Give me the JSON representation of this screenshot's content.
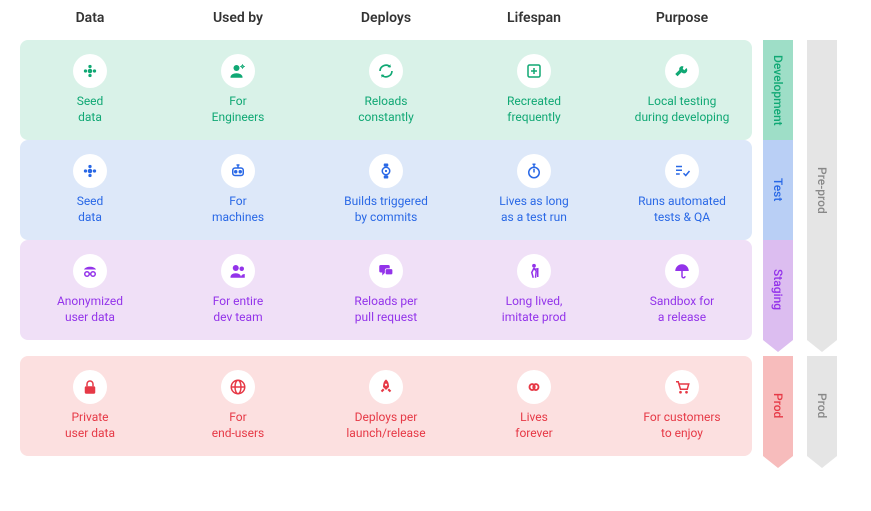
{
  "columns": [
    "Data",
    "Used by",
    "Deploys",
    "Lifespan",
    "Purpose"
  ],
  "environments": {
    "development": {
      "label": "Development",
      "bg_color": "#d9f2e8",
      "text_color": "#10a874",
      "tag_bg": "#9edec7",
      "cells": [
        {
          "icon": "flower",
          "text": "Seed\ndata"
        },
        {
          "icon": "engineer",
          "text": "For\nEngineers"
        },
        {
          "icon": "reload",
          "text": "Reloads\nconstantly"
        },
        {
          "icon": "plus-box",
          "text": "Recreated\nfrequently"
        },
        {
          "icon": "wrench",
          "text": "Local testing\nduring developing"
        }
      ]
    },
    "test": {
      "label": "Test",
      "bg_color": "#dde8f9",
      "text_color": "#2968e6",
      "tag_bg": "#b9cff5",
      "cells": [
        {
          "icon": "flower",
          "text": "Seed\ndata"
        },
        {
          "icon": "robot",
          "text": "For\nmachines"
        },
        {
          "icon": "watch",
          "text": "Builds triggered\nby commits"
        },
        {
          "icon": "stopwatch",
          "text": "Lives as long\nas a test run"
        },
        {
          "icon": "checklist",
          "text": "Runs automated\ntests & QA"
        }
      ]
    },
    "staging": {
      "label": "Staging",
      "bg_color": "#f0e0f7",
      "text_color": "#9333ea",
      "tag_bg": "#dcbdf0",
      "cells": [
        {
          "icon": "incognito",
          "text": "Anonymized\nuser data"
        },
        {
          "icon": "team",
          "text": "For entire\ndev team"
        },
        {
          "icon": "chat",
          "text": "Reloads per\npull request"
        },
        {
          "icon": "walker",
          "text": "Long lived,\nimitate prod"
        },
        {
          "icon": "umbrella",
          "text": "Sandbox for\na release"
        }
      ]
    },
    "prod": {
      "label": "Prod",
      "bg_color": "#fce0e0",
      "text_color": "#e63946",
      "tag_bg": "#f7bcbc",
      "cells": [
        {
          "icon": "lock",
          "text": "Private\nuser data"
        },
        {
          "icon": "globe",
          "text": "For\nend-users"
        },
        {
          "icon": "rocket",
          "text": "Deploys per\nlaunch/release"
        },
        {
          "icon": "infinity",
          "text": "Lives\nforever"
        },
        {
          "icon": "cart",
          "text": "For customers\nto enjoy"
        }
      ]
    }
  },
  "groupings": {
    "preprod": "Pre-prod",
    "prod": "Prod"
  },
  "colors": {
    "header_text": "#333333",
    "gray_tag_bg": "#e5e5e5",
    "gray_tag_text": "#888888",
    "background": "#ffffff"
  },
  "typography": {
    "header_fontsize": 14,
    "cell_fontsize": 12,
    "tag_fontsize": 12
  }
}
